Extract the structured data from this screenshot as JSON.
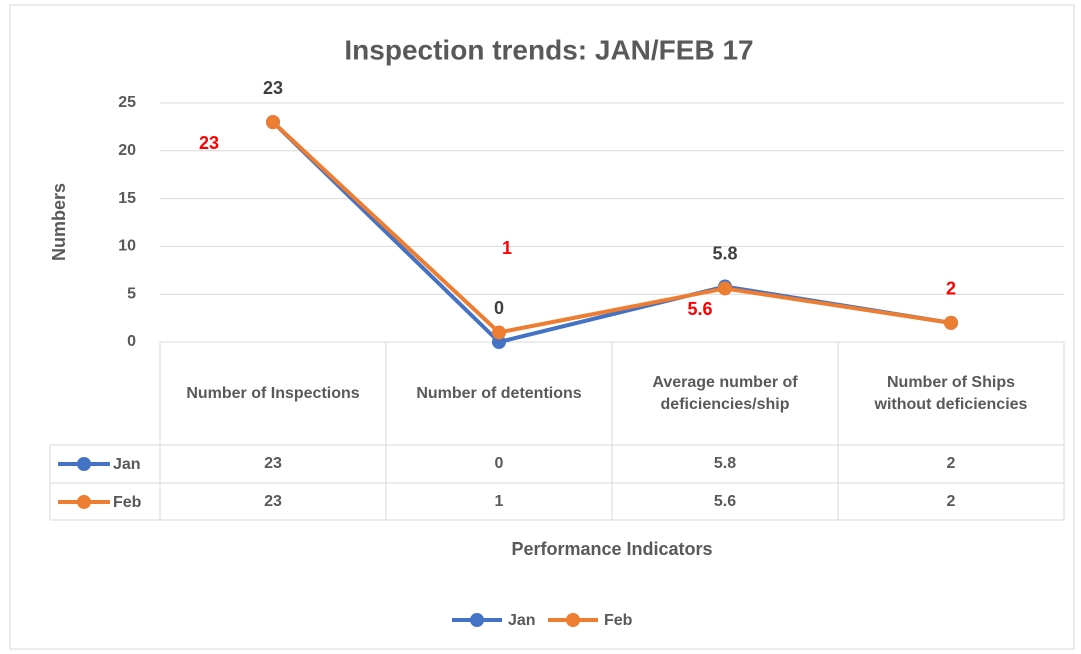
{
  "chart_data": {
    "type": "line",
    "title": "Inspection trends: JAN/FEB 17",
    "y_label": "Numbers",
    "x_label": "Performance Indicators",
    "categories": [
      "Number of Inspections",
      "Number of detentions",
      "Average number of deficiencies/ship",
      "Number of Ships without deficiencies"
    ],
    "series": [
      {
        "name": "Jan",
        "color": "#4472c4",
        "label_color": "#404040",
        "values": [
          23,
          0,
          5.8,
          2
        ]
      },
      {
        "name": "Feb",
        "color": "#ed7d31",
        "label_color": "#ff0000",
        "values": [
          23,
          1,
          5.6,
          2
        ]
      }
    ],
    "ylim": [
      0,
      25
    ],
    "yticks": [
      0,
      5,
      10,
      15,
      20,
      25
    ],
    "grid": true,
    "legend": "bottom"
  }
}
